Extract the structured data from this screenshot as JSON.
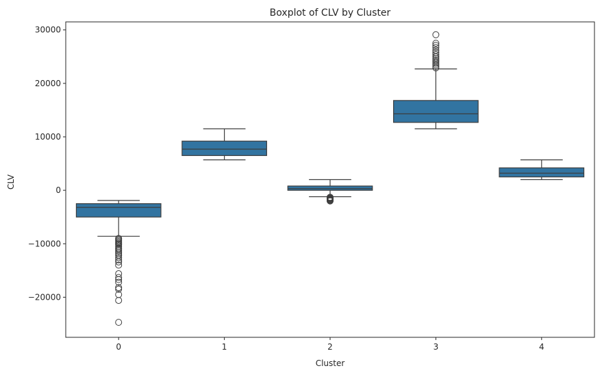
{
  "chart_data": {
    "type": "boxplot",
    "title": "Boxplot of CLV by Cluster",
    "xlabel": "Cluster",
    "ylabel": "CLV",
    "categories": [
      "0",
      "1",
      "2",
      "3",
      "4"
    ],
    "ylim": [
      -27500,
      31500
    ],
    "yticks": [
      -20000,
      -10000,
      0,
      10000,
      20000,
      30000
    ],
    "yticklabels": [
      "−20000",
      "−10000",
      "0",
      "10000",
      "20000",
      "30000"
    ],
    "grid": false,
    "legend": "none",
    "box_color": "#3274a1",
    "line_color": "#3d3d3d",
    "boxes": [
      {
        "category": "0",
        "whisker_low": -8600,
        "q1": -5000,
        "median": -3200,
        "q3": -2500,
        "whisker_high": -1900,
        "outliers": [
          -9000,
          -9200,
          -9400,
          -9600,
          -9800,
          -10000,
          -10200,
          -10500,
          -10800,
          -11000,
          -11300,
          -11600,
          -11900,
          -12200,
          -12600,
          -13000,
          -13400,
          -14000,
          -15600,
          -16300,
          -16700,
          -17200,
          -18200,
          -18500,
          -19500,
          -20600,
          -24700
        ]
      },
      {
        "category": "1",
        "whisker_low": 5700,
        "q1": 6500,
        "median": 7700,
        "q3": 9200,
        "whisker_high": 11500,
        "outliers": []
      },
      {
        "category": "2",
        "whisker_low": -1200,
        "q1": 0,
        "median": 300,
        "q3": 800,
        "whisker_high": 2000,
        "outliers": [
          -1300,
          -1400,
          -1500,
          -1600,
          -1700,
          -1800,
          -1900,
          -2000
        ]
      },
      {
        "category": "3",
        "whisker_low": 11500,
        "q1": 12700,
        "median": 14300,
        "q3": 16800,
        "whisker_high": 22700,
        "outliers": [
          22900,
          23200,
          23500,
          23800,
          24100,
          24400,
          24700,
          25000,
          25400,
          25800,
          26200,
          26700,
          27100,
          27500,
          29100
        ]
      },
      {
        "category": "4",
        "whisker_low": 2000,
        "q1": 2500,
        "median": 3200,
        "q3": 4200,
        "whisker_high": 5700,
        "outliers": []
      }
    ]
  }
}
